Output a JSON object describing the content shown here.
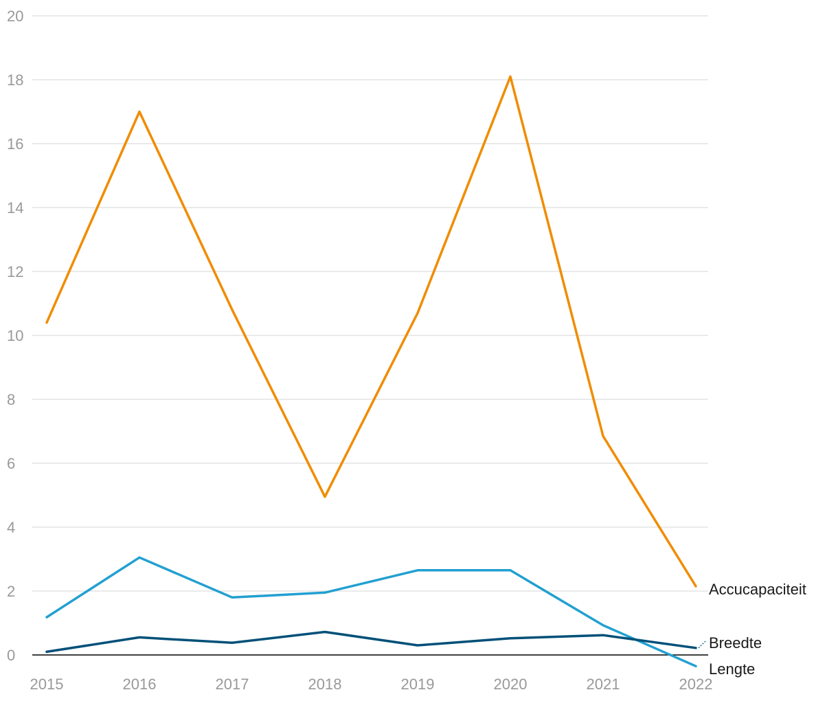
{
  "chart_data": {
    "type": "line",
    "title": "",
    "xlabel": "",
    "ylabel": "",
    "categories": [
      "2015",
      "2016",
      "2017",
      "2018",
      "2019",
      "2020",
      "2021",
      "2022"
    ],
    "ylim": [
      0,
      20
    ],
    "yticks": [
      "0",
      "2",
      "4",
      "6",
      "8",
      "10",
      "12",
      "14",
      "16",
      "18",
      "20"
    ],
    "grid": true,
    "legend": "direct labels at line ends (right)",
    "series": [
      {
        "name": "Accucapaciteit",
        "color": "#f08c00",
        "values": [
          10.4,
          17.0,
          10.8,
          4.95,
          10.7,
          18.1,
          6.85,
          2.15
        ]
      },
      {
        "name": "Lengte",
        "color": "#22a0d0",
        "values": [
          1.18,
          3.05,
          1.8,
          1.95,
          2.65,
          2.65,
          0.93,
          -0.35
        ]
      },
      {
        "name": "Breedte",
        "color": "#005078",
        "values": [
          0.1,
          0.55,
          0.38,
          0.72,
          0.3,
          0.52,
          0.62,
          0.22
        ]
      }
    ]
  }
}
